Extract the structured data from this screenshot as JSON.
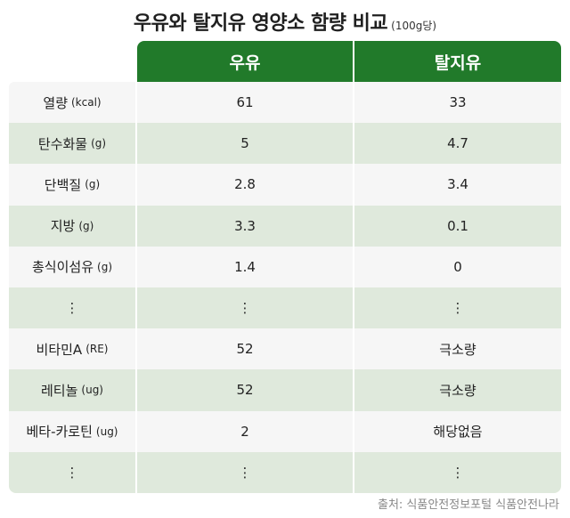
{
  "title": "우유와 탈지유 영양소 함량 비교",
  "title_unit": "(100g당)",
  "columns": [
    "우유",
    "탈지유"
  ],
  "rows": [
    {
      "label": "열량",
      "unit": "(kcal)",
      "milk": "61",
      "skim": "33"
    },
    {
      "label": "탄수화물",
      "unit": "(g)",
      "milk": "5",
      "skim": "4.7"
    },
    {
      "label": "단백질",
      "unit": "(g)",
      "milk": "2.8",
      "skim": "3.4"
    },
    {
      "label": "지방",
      "unit": "(g)",
      "milk": "3.3",
      "skim": "0.1"
    },
    {
      "label": "총식이섬유",
      "unit": "(g)",
      "milk": "1.4",
      "skim": "0"
    },
    {
      "label": "⋮",
      "unit": "",
      "milk": "⋮",
      "skim": "⋮"
    },
    {
      "label": "비타민A",
      "unit": "(RE)",
      "milk": "52",
      "skim": "극소량"
    },
    {
      "label": "레티놀",
      "unit": "(ug)",
      "milk": "52",
      "skim": "극소량"
    },
    {
      "label": "베타-카로틴",
      "unit": "(ug)",
      "milk": "2",
      "skim": "해당없음"
    },
    {
      "label": "⋮",
      "unit": "",
      "milk": "⋮",
      "skim": "⋮"
    }
  ],
  "source": "출처: 식품안전정보포털 식품안전나라",
  "colors": {
    "header": "#217a2a",
    "row_odd": "#f6f6f6",
    "row_even": "#dfe9dc"
  }
}
